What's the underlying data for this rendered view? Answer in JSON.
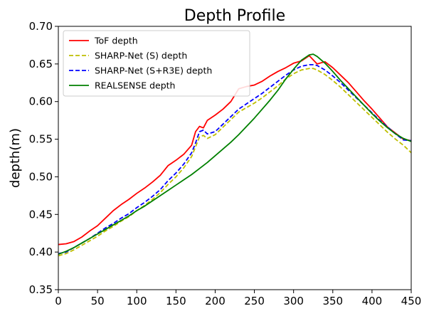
{
  "chart_data": {
    "type": "line",
    "title": "Depth Profile",
    "xlabel": "",
    "ylabel": "depth(m)",
    "xlim": [
      0,
      450
    ],
    "ylim": [
      0.35,
      0.7
    ],
    "xticks": [
      "0",
      "50",
      "100",
      "150",
      "200",
      "250",
      "300",
      "350",
      "400",
      "450"
    ],
    "yticks": [
      "0.35",
      "0.40",
      "0.45",
      "0.50",
      "0.55",
      "0.60",
      "0.65",
      "0.70"
    ],
    "grid": false,
    "legend_position": "top-left",
    "series": [
      {
        "name": "ToF depth",
        "color": "#ff0000",
        "style": "solid",
        "x": [
          0,
          10,
          20,
          30,
          40,
          50,
          60,
          70,
          80,
          90,
          100,
          110,
          120,
          130,
          140,
          150,
          160,
          170,
          175,
          180,
          185,
          190,
          200,
          210,
          220,
          230,
          240,
          250,
          260,
          270,
          280,
          290,
          300,
          310,
          320,
          330,
          340,
          350,
          360,
          370,
          380,
          390,
          400,
          410,
          420,
          430,
          440,
          450
        ],
        "y": [
          0.41,
          0.411,
          0.414,
          0.42,
          0.428,
          0.435,
          0.445,
          0.455,
          0.463,
          0.47,
          0.478,
          0.485,
          0.493,
          0.502,
          0.515,
          0.522,
          0.53,
          0.542,
          0.56,
          0.567,
          0.565,
          0.575,
          0.582,
          0.59,
          0.6,
          0.617,
          0.62,
          0.622,
          0.627,
          0.634,
          0.64,
          0.645,
          0.651,
          0.654,
          0.661,
          0.65,
          0.653,
          0.645,
          0.635,
          0.625,
          0.613,
          0.601,
          0.59,
          0.578,
          0.566,
          0.558,
          0.55,
          0.548
        ]
      },
      {
        "name": "SHARP-Net (S) depth",
        "color": "#bfbf00",
        "style": "dashed",
        "x": [
          0,
          10,
          20,
          30,
          40,
          50,
          60,
          70,
          80,
          90,
          100,
          110,
          120,
          130,
          140,
          150,
          160,
          170,
          175,
          180,
          185,
          190,
          200,
          210,
          220,
          230,
          240,
          250,
          260,
          270,
          280,
          290,
          300,
          310,
          320,
          325,
          330,
          340,
          350,
          360,
          370,
          380,
          390,
          400,
          410,
          420,
          430,
          440,
          450
        ],
        "y": [
          0.395,
          0.398,
          0.403,
          0.409,
          0.415,
          0.421,
          0.428,
          0.434,
          0.441,
          0.447,
          0.455,
          0.462,
          0.47,
          0.479,
          0.49,
          0.5,
          0.512,
          0.527,
          0.54,
          0.553,
          0.555,
          0.551,
          0.556,
          0.566,
          0.576,
          0.586,
          0.592,
          0.598,
          0.605,
          0.613,
          0.621,
          0.63,
          0.637,
          0.642,
          0.644,
          0.644,
          0.642,
          0.636,
          0.628,
          0.619,
          0.609,
          0.599,
          0.589,
          0.579,
          0.569,
          0.559,
          0.55,
          0.542,
          0.532
        ]
      },
      {
        "name": "SHARP-Net (S+R3E) depth",
        "color": "#0000ff",
        "style": "dashed",
        "x": [
          0,
          10,
          20,
          30,
          40,
          50,
          60,
          70,
          80,
          90,
          100,
          110,
          120,
          130,
          140,
          150,
          160,
          170,
          175,
          180,
          185,
          190,
          200,
          210,
          220,
          230,
          240,
          250,
          260,
          270,
          280,
          290,
          300,
          310,
          320,
          325,
          330,
          340,
          350,
          360,
          370,
          380,
          390,
          400,
          410,
          420,
          430,
          440,
          450
        ],
        "y": [
          0.398,
          0.4,
          0.406,
          0.412,
          0.418,
          0.425,
          0.432,
          0.438,
          0.445,
          0.451,
          0.459,
          0.466,
          0.474,
          0.483,
          0.495,
          0.505,
          0.517,
          0.532,
          0.545,
          0.56,
          0.562,
          0.557,
          0.56,
          0.57,
          0.58,
          0.59,
          0.597,
          0.604,
          0.611,
          0.619,
          0.627,
          0.635,
          0.642,
          0.647,
          0.649,
          0.649,
          0.648,
          0.642,
          0.634,
          0.625,
          0.615,
          0.605,
          0.595,
          0.585,
          0.575,
          0.566,
          0.557,
          0.549,
          0.548
        ]
      },
      {
        "name": "REALSENSE depth",
        "color": "#008000",
        "style": "solid",
        "x": [
          0,
          10,
          20,
          30,
          40,
          50,
          60,
          70,
          80,
          90,
          100,
          110,
          120,
          130,
          140,
          150,
          160,
          170,
          180,
          190,
          200,
          210,
          220,
          230,
          240,
          250,
          260,
          270,
          280,
          290,
          300,
          310,
          320,
          325,
          330,
          340,
          350,
          360,
          370,
          380,
          390,
          400,
          410,
          420,
          430,
          440,
          450
        ],
        "y": [
          0.397,
          0.401,
          0.406,
          0.412,
          0.418,
          0.424,
          0.43,
          0.436,
          0.442,
          0.448,
          0.455,
          0.461,
          0.468,
          0.475,
          0.482,
          0.489,
          0.496,
          0.503,
          0.511,
          0.519,
          0.528,
          0.537,
          0.546,
          0.556,
          0.567,
          0.578,
          0.59,
          0.602,
          0.615,
          0.63,
          0.643,
          0.655,
          0.662,
          0.663,
          0.66,
          0.651,
          0.64,
          0.628,
          0.617,
          0.606,
          0.595,
          0.584,
          0.574,
          0.565,
          0.557,
          0.551,
          0.547
        ]
      }
    ]
  }
}
